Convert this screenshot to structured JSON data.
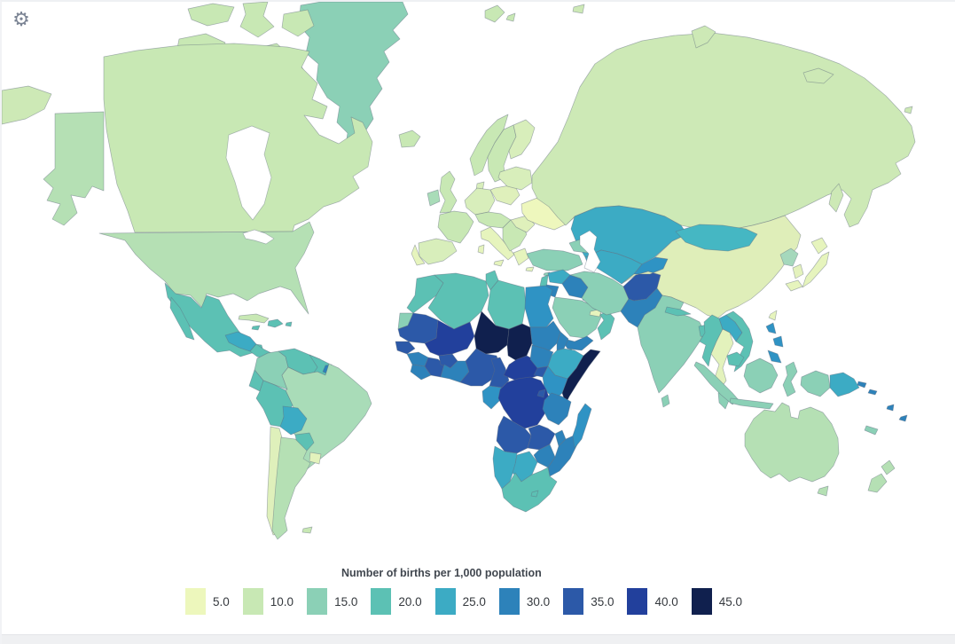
{
  "toolbar": {
    "settings_icon": "⚙"
  },
  "legend": {
    "title": "Number of births per 1,000 population",
    "items": [
      {
        "value": "5.0",
        "color": "#edf7bc"
      },
      {
        "value": "10.0",
        "color": "#c8e8b4"
      },
      {
        "value": "15.0",
        "color": "#8bd0b6"
      },
      {
        "value": "20.0",
        "color": "#5cc1b4"
      },
      {
        "value": "25.0",
        "color": "#3cabc4"
      },
      {
        "value": "30.0",
        "color": "#2d82ba"
      },
      {
        "value": "35.0",
        "color": "#2c59a8"
      },
      {
        "value": "40.0",
        "color": "#22409c"
      },
      {
        "value": "45.0",
        "color": "#10204e"
      }
    ]
  },
  "map": {
    "ocean_color": "#ffffff",
    "border_color": "#5f6c7d",
    "colors": {
      "greenland": "#8bd0b6",
      "canada": "#c8e8b4",
      "usa": "#b5e0b4",
      "mexico": "#5cc1b4",
      "guatemala_honduras": "#3cabc4",
      "costa_rica_panama": "#5cc1b4",
      "cuba": "#c8e8b4",
      "hispaniola": "#5cc1b4",
      "jamaica": "#5cc1b4",
      "puerto_rico": "#5cc1b4",
      "colombia": "#8bd0b6",
      "venezuela": "#5cc1b4",
      "guyana_suriname": "#5cc1b4",
      "french_guiana": "#2d82ba",
      "ecuador": "#5cc1b4",
      "peru": "#5cc1b4",
      "brazil": "#a9dcb8",
      "bolivia": "#3cabc4",
      "paraguay": "#5cc1b4",
      "uruguay": "#e3f2bc",
      "chile": "#dff0bb",
      "argentina": "#b5e0b4",
      "falkland_islands": "#c8e8b4",
      "iceland": "#c8e8b4",
      "united_kingdom": "#c8e8b4",
      "ireland": "#a9dcb8",
      "norway": "#c8e8b4",
      "sweden": "#c8e8b4",
      "finland": "#d8eebb",
      "denmark": "#d8eebb",
      "germany_benelux": "#d8eebb",
      "poland": "#dff0bb",
      "belarus_baltics": "#d8eebb",
      "france": "#c8e8b4",
      "spain": "#d8eebb",
      "portugal": "#e6f4bd",
      "central_europe": "#c8e8b4",
      "italy": "#e6f4bd",
      "balkans": "#c8e8b4",
      "greece": "#e6f4bd",
      "romania": "#dff0bb",
      "ukraine": "#eef7bd",
      "russia": "#cde9b6",
      "turkey": "#8bd0b6",
      "caucasus": "#8bd0b6",
      "cyprus": "#8bd0b6",
      "kazakhstan": "#3cabc4",
      "uzbekistan_turkmenistan": "#3cabc4",
      "kyrgyzstan_tajikistan": "#2f93c4",
      "china": "#dfeeb9",
      "mongolia": "#45b7c3",
      "north_korea": "#a5d8bc",
      "south_korea": "#e4f2bd",
      "japan": "#e6f4bd",
      "taiwan": "#e6f4bd",
      "india": "#8bd0b6",
      "sri_lanka": "#8bd0b6",
      "nepal": "#5cc1b4",
      "bangladesh": "#5cc1b4",
      "myanmar": "#5cc1b4",
      "thailand": "#e3f2bc",
      "laos": "#3cabc4",
      "vietnam": "#5cc1b4",
      "cambodia": "#5cc1b4",
      "malaysia": "#8bd0b6",
      "indonesia": "#8bd0b6",
      "philippines": "#2f93c4",
      "papua_new_guinea": "#3cabc4",
      "solomon_islands": "#2d82ba",
      "vanuatu": "#2d82ba",
      "fiji": "#2d82ba",
      "new_caledonia": "#8bd0b6",
      "australia": "#b5e0b4",
      "new_zealand": "#b5e0b4",
      "morocco": "#5cc1b4",
      "western_sahara": "#8bd0b6",
      "algeria": "#5cc1b4",
      "tunisia": "#5cc1b4",
      "libya": "#5cc1b4",
      "egypt": "#2f93c4",
      "mauritania": "#2c59a8",
      "senegal": "#2c59a8",
      "mali": "#22409c",
      "guinea": "#2d82ba",
      "sierra_leone_liberia": "#2d82ba",
      "cote_divoire": "#2c59a8",
      "burkina_faso": "#2c59a8",
      "ghana_togo_benin": "#2d82ba",
      "niger": "#10204e",
      "nigeria": "#2c59a8",
      "chad": "#10204e",
      "cameroon": "#2c59a8",
      "central_african_republic": "#22409c",
      "sudan": "#2d82ba",
      "eritrea": "#2d82ba",
      "djibouti": "#3cabc4",
      "ethiopia": "#3cabc4",
      "somalia": "#10204e",
      "south_sudan": "#2d82ba",
      "uganda": "#2c59a8",
      "kenya": "#2f93c4",
      "gabon_congo": "#2f93c4",
      "dr_congo": "#22409c",
      "rwanda_burundi": "#2c59a8",
      "tanzania": "#2d82ba",
      "angola": "#2c59a8",
      "zambia": "#2c59a8",
      "malawi": "#2d82ba",
      "mozambique": "#2d82ba",
      "zimbabwe": "#2d82ba",
      "namibia": "#3cabc4",
      "botswana": "#3cabc4",
      "south_africa": "#5cc1b4",
      "lesotho": "#5cc1b4",
      "madagascar": "#2f93c4",
      "israel_lebanon": "#5cc1b4",
      "syria": "#3cabc4",
      "jordan": "#2d82ba",
      "iraq": "#2d82ba",
      "saudi_arabia": "#8bd0b6",
      "yemen": "#2d82ba",
      "oman": "#5cc1b4",
      "uae_qatar": "#e6f4bd",
      "kuwait": "#5cc1b4",
      "iran": "#8bd0b6",
      "afghanistan": "#2c59a8",
      "pakistan": "#2d82ba"
    }
  }
}
